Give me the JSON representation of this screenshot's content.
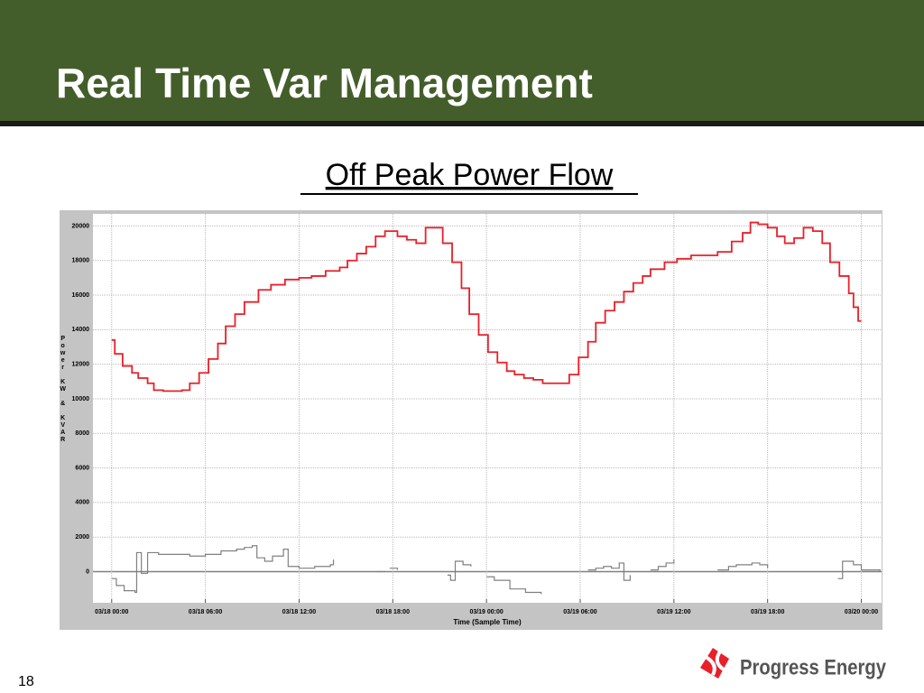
{
  "slide": {
    "title": "Real Time Var Management",
    "subtitle": "Off Peak Power Flow",
    "page_number": "18",
    "logo_text": "Progress Energy"
  },
  "chart_data": {
    "type": "line",
    "step": true,
    "grid": true,
    "xlabel": "Time  (Sample Time)",
    "ylabel": "Power KW & KVAR",
    "xlim": [
      -1.2,
      49.3
    ],
    "ylim": [
      -1800,
      20700
    ],
    "xticks": [
      {
        "value": 0,
        "label": "03/18 00:00"
      },
      {
        "value": 6,
        "label": "03/18 06:00"
      },
      {
        "value": 12,
        "label": "03/18 12:00"
      },
      {
        "value": 18,
        "label": "03/18 18:00"
      },
      {
        "value": 24,
        "label": "03/19 00:00"
      },
      {
        "value": 30,
        "label": "03/19 06:00"
      },
      {
        "value": 36,
        "label": "03/19 12:00"
      },
      {
        "value": 42,
        "label": "03/19 18:00"
      },
      {
        "value": 48,
        "label": "03/20 00:00"
      }
    ],
    "yticks": [
      0,
      2000,
      4000,
      6000,
      8000,
      10000,
      12000,
      14000,
      16000,
      18000,
      20000
    ],
    "series": [
      {
        "name": "KW",
        "color": "#e8202a",
        "x": [
          0,
          0.2,
          0.7,
          1.3,
          1.7,
          2.3,
          2.7,
          3.3,
          3.9,
          4.5,
          5.0,
          5.6,
          6.2,
          6.8,
          7.3,
          7.9,
          8.5,
          9.4,
          10.2,
          11.1,
          12.0,
          12.8,
          13.7,
          14.6,
          15.1,
          15.7,
          16.3,
          16.9,
          17.5,
          17.9,
          18.3,
          18.9,
          19.5,
          20.1,
          20.6,
          21.2,
          21.8,
          22.4,
          22.9,
          23.5,
          24.1,
          24.7,
          25.3,
          25.8,
          26.4,
          27.0,
          27.6,
          28.2,
          28.7,
          29.3,
          29.9,
          30.5,
          31.0,
          31.6,
          32.2,
          32.8,
          33.4,
          34.0,
          34.5,
          35.4,
          36.2,
          37.1,
          38.0,
          38.8,
          39.7,
          40.4,
          40.9,
          41.4,
          42.0,
          42.6,
          43.1,
          43.7,
          44.3,
          44.9,
          45.5,
          46.0,
          46.6,
          47.2,
          47.5,
          47.8,
          48.0
        ],
        "values": [
          13400,
          12600,
          11900,
          11500,
          11200,
          10900,
          10500,
          10450,
          10450,
          10500,
          10900,
          11500,
          12300,
          13200,
          14200,
          14900,
          15600,
          16300,
          16600,
          16900,
          17000,
          17100,
          17400,
          17600,
          18000,
          18400,
          18800,
          19400,
          19700,
          19700,
          19400,
          19200,
          19000,
          19900,
          19900,
          19000,
          17900,
          16400,
          14900,
          13700,
          12700,
          12100,
          11600,
          11400,
          11200,
          11100,
          10900,
          10900,
          10900,
          11400,
          12400,
          13300,
          14400,
          15100,
          15600,
          16200,
          16700,
          17100,
          17500,
          17900,
          18100,
          18300,
          18300,
          18500,
          19100,
          19600,
          20200,
          20100,
          19900,
          19400,
          19000,
          19300,
          19900,
          19700,
          19000,
          17900,
          17100,
          16100,
          15300,
          14500,
          14500
        ]
      },
      {
        "name": "KVAR",
        "color": "#808080",
        "x": [
          0,
          0.3,
          0.8,
          1.5,
          1.6,
          1.9,
          2.3,
          3,
          4,
          5,
          6,
          7,
          8,
          8.5,
          9,
          9.3,
          9.8,
          10.3,
          11,
          11.3,
          12,
          13,
          14,
          14.2,
          14.5,
          17,
          17.5,
          17.6,
          17.8,
          18.3,
          18.5,
          19,
          19.3,
          21.5,
          21.7,
          22,
          22.5,
          23,
          23.3,
          24,
          24.5,
          25.5,
          26.5,
          27.5,
          27.8,
          30.5,
          31,
          31.5,
          32,
          32.5,
          32.8,
          33.2,
          33.4,
          34.5,
          35,
          35.5,
          36,
          36.2,
          38,
          38.4,
          38.8,
          39.5,
          40,
          41,
          41.5,
          42,
          42.3,
          42.5,
          42.8,
          46.5,
          46.8,
          47.5,
          48,
          49.2
        ],
        "values": [
          -400,
          -800,
          -1100,
          -1200,
          1100,
          -100,
          1100,
          1000,
          1000,
          900,
          1000,
          1200,
          1300,
          1400,
          1500,
          800,
          600,
          900,
          1300,
          300,
          200,
          300,
          400,
          700,
          null,
          0,
          0,
          null,
          200,
          100,
          null,
          0,
          null,
          -200,
          -500,
          600,
          400,
          300,
          null,
          -300,
          -500,
          -1000,
          -1200,
          -1300,
          null,
          100,
          200,
          300,
          200,
          500,
          -500,
          -200,
          null,
          100,
          300,
          500,
          700,
          null,
          300,
          null,
          100,
          300,
          400,
          500,
          400,
          200,
          null,
          100,
          null,
          -400,
          600,
          400,
          100,
          0
        ]
      }
    ]
  }
}
